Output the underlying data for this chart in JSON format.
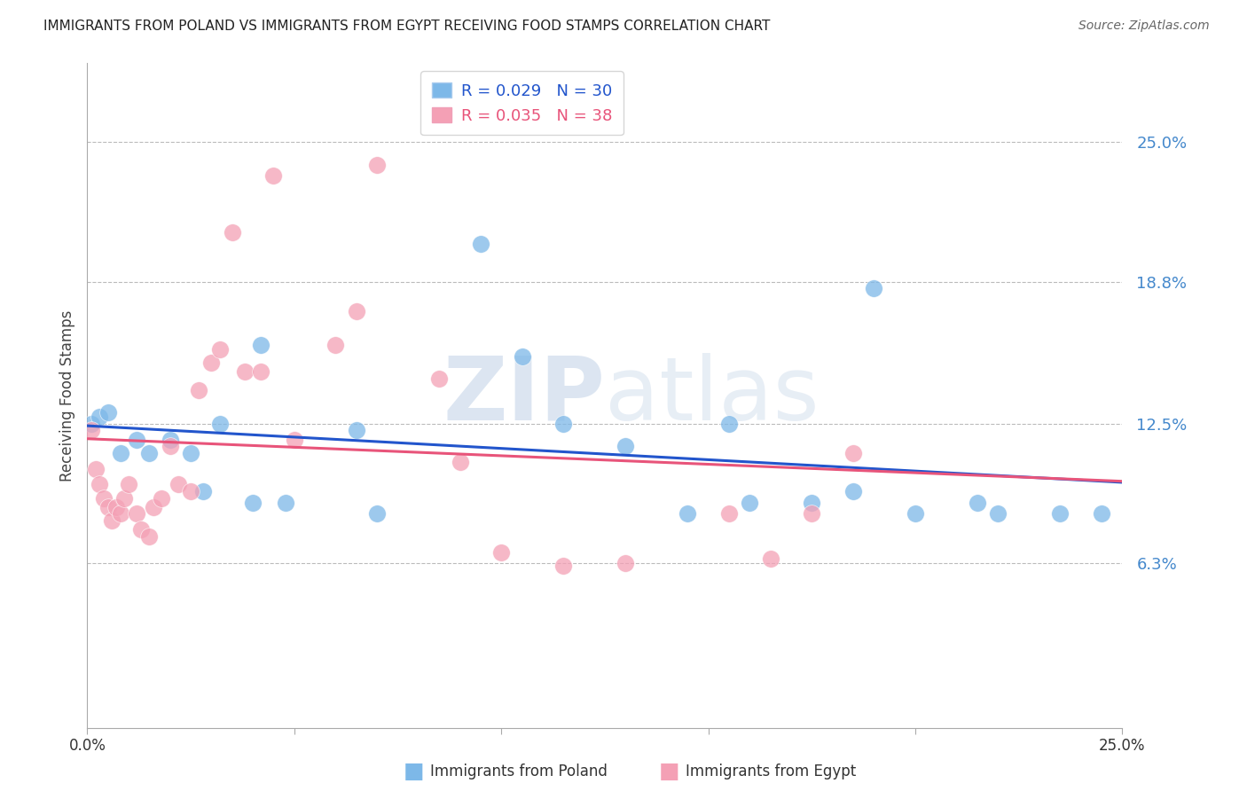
{
  "title": "IMMIGRANTS FROM POLAND VS IMMIGRANTS FROM EGYPT RECEIVING FOOD STAMPS CORRELATION CHART",
  "source": "Source: ZipAtlas.com",
  "ylabel": "Receiving Food Stamps",
  "ytick_labels": [
    "25.0%",
    "18.8%",
    "12.5%",
    "6.3%"
  ],
  "ytick_values": [
    0.25,
    0.188,
    0.125,
    0.063
  ],
  "xlim": [
    0.0,
    0.25
  ],
  "ylim": [
    -0.01,
    0.285
  ],
  "watermark": "ZIPatlas",
  "legend_poland_R": "R = 0.029",
  "legend_poland_N": "N = 30",
  "legend_egypt_R": "R = 0.035",
  "legend_egypt_N": "N = 38",
  "poland_color": "#7db8e8",
  "egypt_color": "#f4a0b5",
  "trendline_poland_color": "#2255cc",
  "trendline_egypt_color": "#e8547a",
  "poland_x": [
    0.001,
    0.003,
    0.005,
    0.008,
    0.012,
    0.015,
    0.02,
    0.025,
    0.028,
    0.032,
    0.04,
    0.042,
    0.048,
    0.065,
    0.07,
    0.095,
    0.105,
    0.115,
    0.13,
    0.145,
    0.155,
    0.16,
    0.175,
    0.185,
    0.19,
    0.2,
    0.215,
    0.22,
    0.235,
    0.245
  ],
  "poland_y": [
    0.125,
    0.128,
    0.13,
    0.112,
    0.118,
    0.112,
    0.118,
    0.112,
    0.095,
    0.125,
    0.09,
    0.16,
    0.09,
    0.122,
    0.085,
    0.205,
    0.155,
    0.125,
    0.115,
    0.085,
    0.125,
    0.09,
    0.09,
    0.095,
    0.185,
    0.085,
    0.09,
    0.085,
    0.085,
    0.085
  ],
  "egypt_x": [
    0.001,
    0.002,
    0.003,
    0.004,
    0.005,
    0.006,
    0.007,
    0.008,
    0.009,
    0.01,
    0.012,
    0.013,
    0.015,
    0.016,
    0.018,
    0.02,
    0.022,
    0.025,
    0.027,
    0.03,
    0.032,
    0.035,
    0.038,
    0.042,
    0.045,
    0.05,
    0.06,
    0.065,
    0.07,
    0.085,
    0.09,
    0.1,
    0.115,
    0.13,
    0.155,
    0.165,
    0.175,
    0.185
  ],
  "egypt_y": [
    0.122,
    0.105,
    0.098,
    0.092,
    0.088,
    0.082,
    0.088,
    0.085,
    0.092,
    0.098,
    0.085,
    0.078,
    0.075,
    0.088,
    0.092,
    0.115,
    0.098,
    0.095,
    0.14,
    0.152,
    0.158,
    0.21,
    0.148,
    0.148,
    0.235,
    0.118,
    0.16,
    0.175,
    0.24,
    0.145,
    0.108,
    0.068,
    0.062,
    0.063,
    0.085,
    0.065,
    0.085,
    0.112
  ]
}
